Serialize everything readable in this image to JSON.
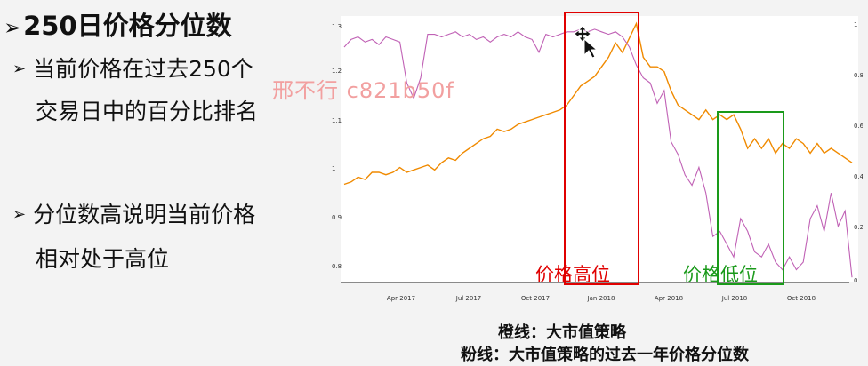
{
  "title": "250日价格分位数",
  "bullets": [
    {
      "line1": "当前价格在过去250个",
      "line2": "交易日中的百分比排名"
    },
    {
      "line1": "分位数高说明当前价格",
      "line2": "相对处于高位"
    }
  ],
  "watermark": "邢不行 c821b50f",
  "captions": {
    "orange": "橙线：大市值策略",
    "pink": "粉线：大市值策略的过去一年价格分位数"
  },
  "chart_data": {
    "type": "line",
    "x_ticks": [
      "Apr 2017",
      "Jul 2017",
      "Oct 2017",
      "Jan 2018",
      "Apr 2018",
      "Jul 2018",
      "Oct 2018"
    ],
    "y_left_ticks": [
      "1.3",
      "1.2",
      "1.1",
      "1",
      "0.9",
      "0.8"
    ],
    "y_right_ticks": [
      "1",
      "0.8",
      "0.6",
      "0.4",
      "0.2",
      "0"
    ],
    "annotations": [
      {
        "label": "价格高位",
        "color": "#e00000"
      },
      {
        "label": "价格低位",
        "color": "#1a9a1a"
      }
    ],
    "series": [
      {
        "color": "#f08a00",
        "values": [
          0.975,
          0.98,
          0.99,
          0.985,
          1.0,
          1.0,
          0.995,
          1.0,
          1.01,
          1.0,
          1.005,
          1.01,
          1.015,
          1.005,
          1.02,
          1.03,
          1.025,
          1.04,
          1.05,
          1.06,
          1.07,
          1.075,
          1.09,
          1.085,
          1.09,
          1.1,
          1.105,
          1.11,
          1.115,
          1.12,
          1.125,
          1.13,
          1.14,
          1.16,
          1.18,
          1.19,
          1.2,
          1.22,
          1.24,
          1.27,
          1.25,
          1.28,
          1.31,
          1.24,
          1.22,
          1.22,
          1.21,
          1.17,
          1.14,
          1.13,
          1.12,
          1.11,
          1.13,
          1.11,
          1.12,
          1.11,
          1.12,
          1.09,
          1.05,
          1.07,
          1.05,
          1.07,
          1.04,
          1.06,
          1.05,
          1.07,
          1.06,
          1.04,
          1.06,
          1.04,
          1.05,
          1.04,
          1.03,
          1.02
        ]
      },
      {
        "color": "#c061b5",
        "values": [
          0.92,
          0.95,
          0.96,
          0.94,
          0.95,
          0.93,
          0.96,
          0.95,
          0.94,
          0.78,
          0.72,
          0.8,
          0.97,
          0.97,
          0.96,
          0.97,
          0.98,
          0.96,
          0.97,
          0.95,
          0.96,
          0.94,
          0.96,
          0.97,
          0.96,
          0.98,
          0.96,
          0.95,
          0.9,
          0.97,
          0.96,
          0.97,
          0.98,
          0.98,
          0.99,
          0.98,
          0.99,
          0.98,
          0.97,
          0.98,
          0.96,
          0.92,
          0.85,
          0.8,
          0.78,
          0.7,
          0.75,
          0.55,
          0.5,
          0.42,
          0.38,
          0.45,
          0.35,
          0.18,
          0.2,
          0.15,
          0.1,
          0.25,
          0.2,
          0.12,
          0.1,
          0.15,
          0.08,
          0.05,
          0.1,
          0.05,
          0.08,
          0.25,
          0.3,
          0.2,
          0.35,
          0.22,
          0.28,
          0.02
        ]
      }
    ]
  }
}
